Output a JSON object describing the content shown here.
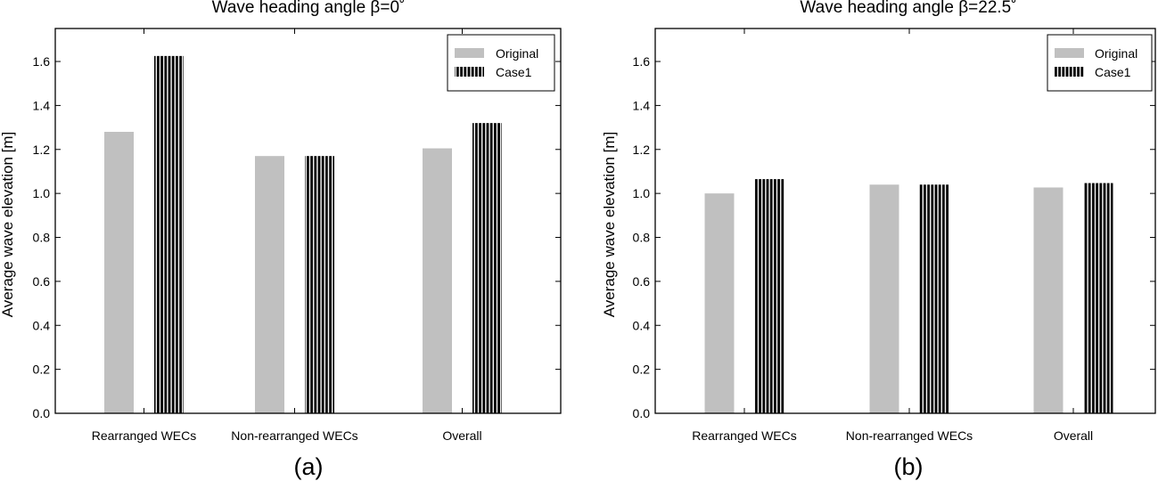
{
  "chart_data": [
    {
      "type": "bar",
      "title": "Wave heading angle β=0˚",
      "ylabel": "Average wave elevation [m]",
      "xlabel": "",
      "categories": [
        "Rearranged WECs",
        "Non-rearranged WECs",
        "Overall"
      ],
      "series": [
        {
          "name": "Original",
          "values": [
            1.28,
            1.17,
            1.205
          ],
          "color": "#c0c0c0",
          "pattern": "solid"
        },
        {
          "name": "Case1",
          "values": [
            1.625,
            1.17,
            1.32
          ],
          "color": "#000000",
          "pattern": "vertical-stripes"
        }
      ],
      "ylim": [
        0,
        1.75
      ],
      "yticks": [
        "0.0",
        "0.2",
        "0.4",
        "0.6",
        "0.8",
        "1.0",
        "1.2",
        "1.4",
        "1.6"
      ],
      "legend_position": "top-right",
      "grid": false,
      "panel_label": "(a)"
    },
    {
      "type": "bar",
      "title": "Wave heading angle β=22.5˚",
      "ylabel": "Average wave elevation [m]",
      "xlabel": "",
      "categories": [
        "Rearranged WECs",
        "Non-rearranged WECs",
        "Overall"
      ],
      "series": [
        {
          "name": "Original",
          "values": [
            1.0,
            1.04,
            1.027
          ],
          "color": "#c0c0c0",
          "pattern": "solid"
        },
        {
          "name": "Case1",
          "values": [
            1.065,
            1.04,
            1.047
          ],
          "color": "#000000",
          "pattern": "vertical-stripes"
        }
      ],
      "ylim": [
        0,
        1.75
      ],
      "yticks": [
        "0.0",
        "0.2",
        "0.4",
        "0.6",
        "0.8",
        "1.0",
        "1.2",
        "1.4",
        "1.6"
      ],
      "legend_position": "top-right",
      "grid": false,
      "panel_label": "(b)"
    }
  ]
}
